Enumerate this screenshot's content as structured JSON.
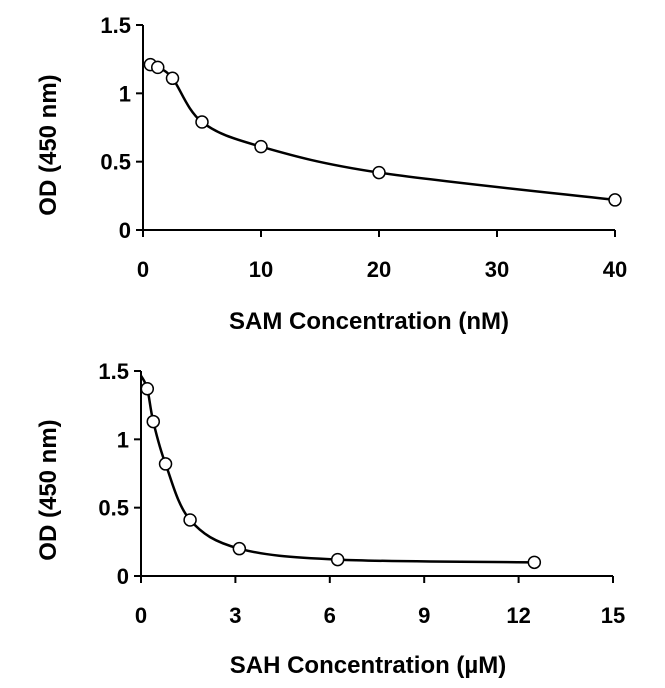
{
  "chart_data": [
    {
      "type": "scatter",
      "xlabel": "SAM Concentration (nM)",
      "ylabel": "OD (450 nm)",
      "xlim": [
        0,
        40
      ],
      "ylim": [
        0,
        1.5
      ],
      "x_ticks": [
        0,
        10,
        20,
        30,
        40
      ],
      "y_ticks": [
        0,
        0.5,
        1,
        1.5
      ],
      "x_tick_labels": [
        "0",
        "10",
        "20",
        "30",
        "40"
      ],
      "y_tick_labels": [
        "0",
        "0.5",
        "1",
        "1.5"
      ],
      "grid": false,
      "series": [
        {
          "x": [
            0.625,
            1.25,
            2.5,
            5,
            10,
            20,
            40
          ],
          "y": [
            1.21,
            1.19,
            1.11,
            0.79,
            0.61,
            0.42,
            0.22
          ]
        }
      ]
    },
    {
      "type": "scatter",
      "xlabel": "SAH Concentration (µM)",
      "ylabel": "OD (450 nm)",
      "xlim": [
        0,
        15
      ],
      "ylim": [
        0,
        1.5
      ],
      "x_ticks": [
        0,
        3,
        6,
        9,
        12,
        15
      ],
      "y_ticks": [
        0,
        0.5,
        1,
        1.5
      ],
      "x_tick_labels": [
        "0",
        "3",
        "6",
        "9",
        "12",
        "15"
      ],
      "y_tick_labels": [
        "0",
        "0.5",
        "1",
        "1.5"
      ],
      "grid": false,
      "series": [
        {
          "x": [
            0.2,
            0.39,
            0.78,
            1.56,
            3.125,
            6.25,
            12.5
          ],
          "y": [
            1.37,
            1.13,
            0.82,
            0.41,
            0.2,
            0.12,
            0.1
          ]
        }
      ]
    }
  ]
}
